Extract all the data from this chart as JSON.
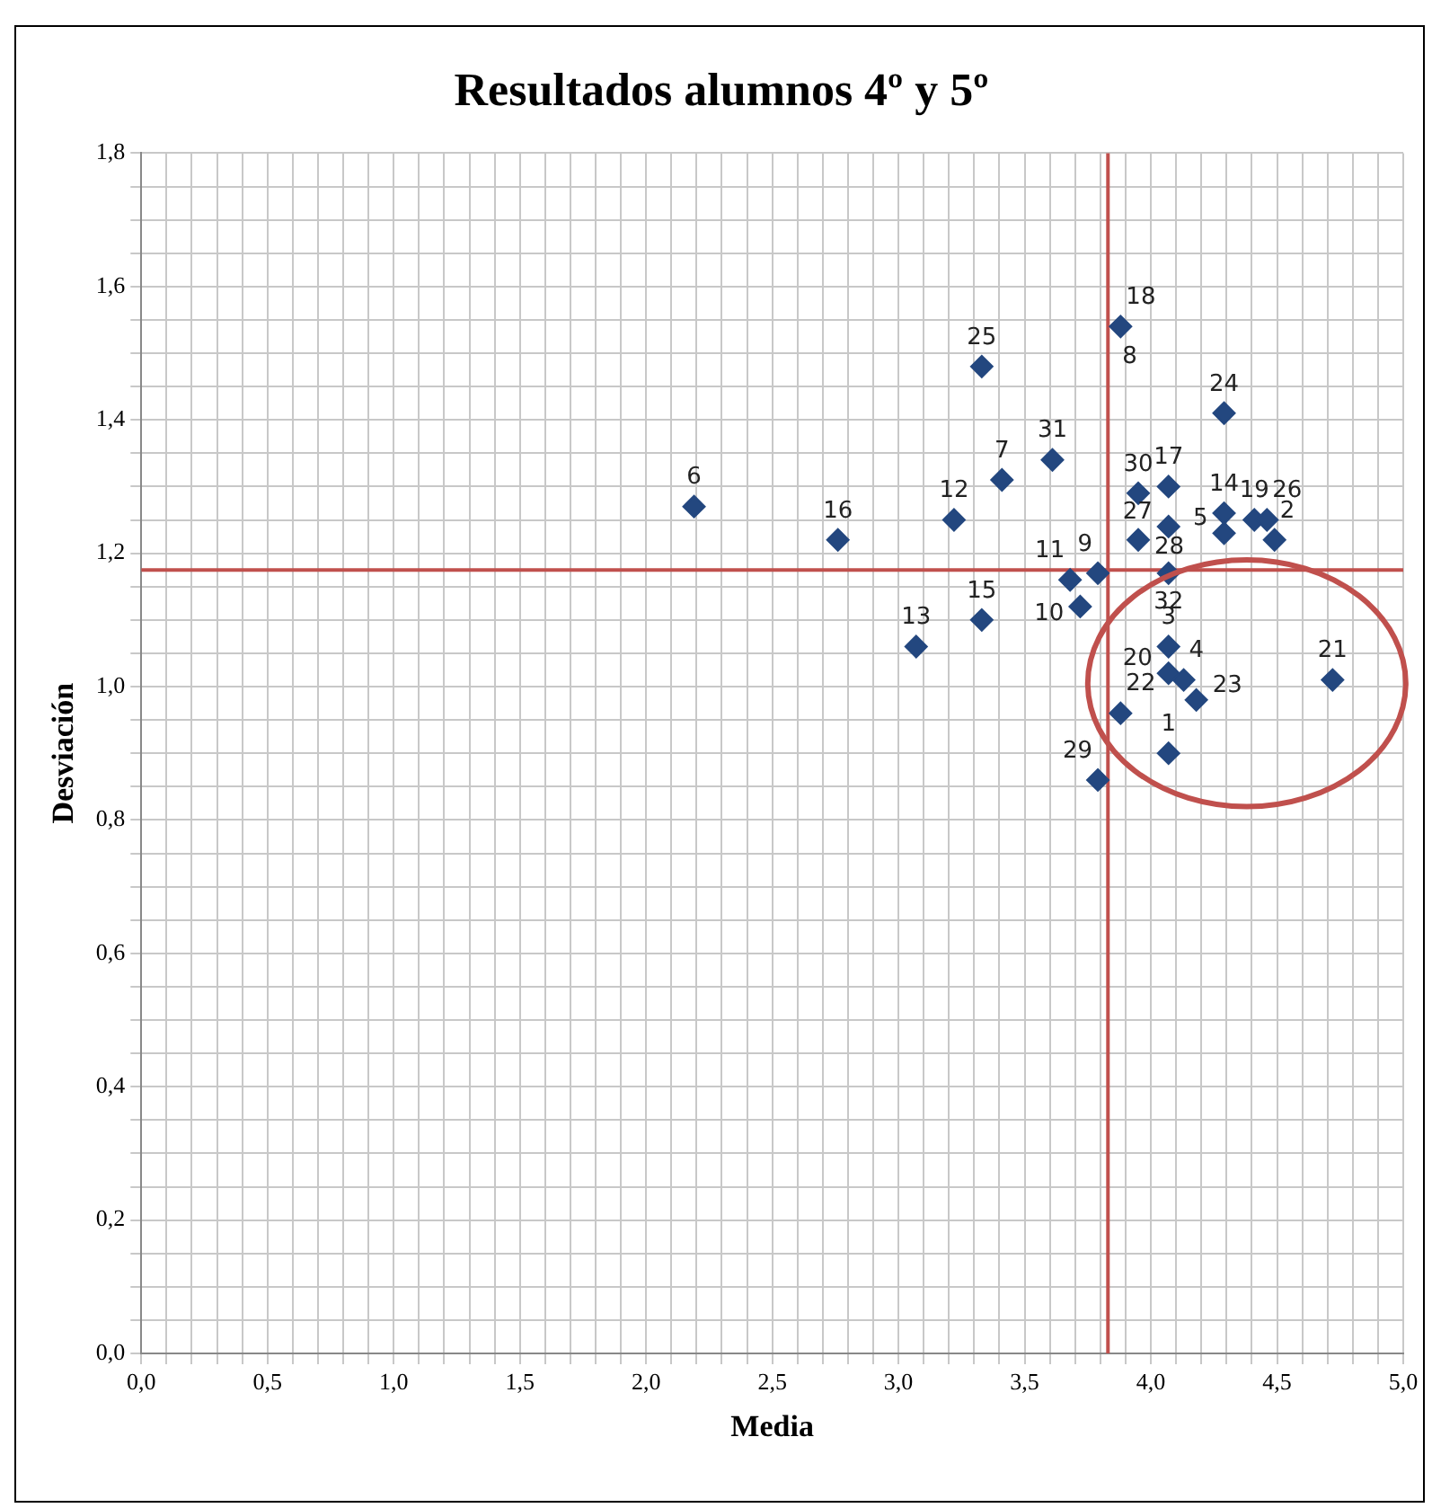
{
  "chart_data": {
    "type": "scatter",
    "title": "Resultados alumnos 4º y 5º",
    "xlabel": "Media",
    "ylabel": "Desviación",
    "x": [
      4.07,
      4.49,
      4.07,
      4.13,
      4.29,
      2.19,
      3.41,
      3.79,
      3.72,
      3.68,
      3.22,
      3.07,
      4.29,
      3.33,
      2.76,
      4.07,
      3.88,
      4.41,
      4.07,
      4.72,
      3.88,
      4.18,
      4.29,
      3.33,
      4.46,
      4.07,
      3.95,
      3.79,
      3.95,
      3.61,
      4.07
    ],
    "values": [
      0.9,
      1.22,
      1.06,
      1.01,
      1.23,
      1.27,
      1.31,
      1.17,
      1.12,
      1.16,
      1.25,
      1.06,
      1.26,
      1.1,
      1.22,
      1.3,
      1.54,
      1.25,
      1.02,
      1.01,
      0.96,
      0.98,
      1.41,
      1.48,
      1.25,
      1.24,
      1.22,
      0.86,
      1.29,
      1.34,
      1.17
    ],
    "color": "#23477f",
    "marker": "diamond",
    "annotations": [
      {
        "text": "1",
        "x": 4.07,
        "y": 0.9
      },
      {
        "text": "2",
        "x": 4.49,
        "y": 1.22
      },
      {
        "text": "3",
        "x": 4.07,
        "y": 1.06
      },
      {
        "text": "4",
        "x": 4.13,
        "y": 1.01
      },
      {
        "text": "5",
        "x": 4.29,
        "y": 1.23
      },
      {
        "text": "6",
        "x": 2.19,
        "y": 1.27
      },
      {
        "text": "7",
        "x": 3.41,
        "y": 1.31
      },
      "8",
      {
        "text": "9",
        "x": 3.79,
        "y": 1.17
      },
      {
        "text": "10",
        "x": 3.72,
        "y": 1.12
      },
      {
        "text": "11",
        "x": 3.68,
        "y": 1.16
      },
      {
        "text": "12",
        "x": 3.22,
        "y": 1.25
      },
      {
        "text": "13",
        "x": 3.07,
        "y": 1.06
      },
      {
        "text": "14",
        "x": 4.29,
        "y": 1.26
      },
      {
        "text": "15",
        "x": 3.33,
        "y": 1.1
      },
      {
        "text": "16",
        "x": 2.76,
        "y": 1.22
      },
      {
        "text": "17",
        "x": 4.07,
        "y": 1.3
      },
      {
        "text": "18",
        "x": 3.88,
        "y": 1.54
      },
      {
        "text": "19",
        "x": 4.41,
        "y": 1.25
      },
      {
        "text": "20",
        "x": 4.07,
        "y": 1.02
      },
      {
        "text": "21",
        "x": 4.72,
        "y": 1.01
      },
      {
        "text": "22",
        "x": 3.88,
        "y": 0.96
      },
      {
        "text": "23",
        "x": 4.18,
        "y": 0.98
      },
      {
        "text": "24",
        "x": 4.29,
        "y": 1.41
      },
      {
        "text": "25",
        "x": 3.33,
        "y": 1.48
      },
      {
        "text": "26",
        "x": 4.46,
        "y": 1.25
      },
      {
        "text": "27",
        "x": 4.07,
        "y": 1.24
      },
      {
        "text": "28",
        "x": 3.95,
        "y": 1.22
      },
      {
        "text": "29",
        "x": 3.79,
        "y": 0.86
      },
      {
        "text": "30",
        "x": 3.95,
        "y": 1.29
      },
      {
        "text": "31",
        "x": 3.61,
        "y": 1.34
      },
      {
        "text": "32",
        "x": 4.07,
        "y": 1.17
      }
    ],
    "ref_lines": [
      {
        "axis": "x",
        "value": 3.83,
        "color": "#c0504d"
      },
      {
        "axis": "y",
        "value": 1.175,
        "color": "#c0504d"
      }
    ],
    "xlim": [
      0,
      5
    ],
    "ylim": [
      0,
      1.8
    ],
    "xticks": [
      {
        "value": 0,
        "label": "0,0"
      },
      {
        "value": 0.1,
        "label": null
      },
      {
        "value": 0.2,
        "label": null
      },
      {
        "value": 0.3,
        "label": null
      },
      {
        "value": 0.4,
        "label": null
      },
      {
        "value": 0.5,
        "label": "0,5"
      },
      {
        "value": 0.6,
        "label": null
      },
      {
        "value": 0.7,
        "label": null
      },
      {
        "value": 0.8,
        "label": null
      },
      {
        "value": 0.9,
        "label": null
      },
      {
        "value": 1,
        "label": "1,0"
      },
      {
        "value": 1.1,
        "label": null
      },
      {
        "value": 1.2,
        "label": null
      },
      {
        "value": 1.3,
        "label": null
      },
      {
        "value": 1.4,
        "label": null
      },
      {
        "value": 1.5,
        "label": "1,5"
      },
      {
        "value": 1.6,
        "label": null
      },
      {
        "value": 1.7,
        "label": null
      },
      {
        "value": 1.8,
        "label": null
      },
      {
        "value": 1.9,
        "label": null
      },
      {
        "value": 2,
        "label": "2,0"
      },
      {
        "value": 2.1,
        "label": null
      },
      {
        "value": 2.2,
        "label": null
      },
      {
        "value": 2.3,
        "label": null
      },
      {
        "value": 2.4,
        "label": null
      },
      {
        "value": 2.5,
        "label": "2,5"
      },
      {
        "value": 2.6,
        "label": null
      },
      {
        "value": 2.7,
        "label": null
      },
      {
        "value": 2.8,
        "label": null
      },
      {
        "value": 2.9,
        "label": null
      },
      {
        "value": 3,
        "label": "3,0"
      },
      {
        "value": 3.1,
        "label": null
      },
      {
        "value": 3.2,
        "label": null
      },
      {
        "value": 3.3,
        "label": null
      },
      {
        "value": 3.4,
        "label": null
      },
      {
        "value": 3.5,
        "label": "3,5"
      },
      {
        "value": 3.6,
        "label": null
      },
      {
        "value": 3.7,
        "label": null
      },
      {
        "value": 3.8,
        "label": null
      },
      {
        "value": 3.9,
        "label": null
      },
      {
        "value": 4,
        "label": "4,0"
      },
      {
        "value": 4.1,
        "label": null
      },
      {
        "value": 4.2,
        "label": null
      },
      {
        "value": 4.3,
        "label": null
      },
      {
        "value": 4.4,
        "label": null
      },
      {
        "value": 4.5,
        "label": "4,5"
      },
      {
        "value": 4.6,
        "label": null
      },
      {
        "value": 4.7,
        "label": null
      },
      {
        "value": 4.8,
        "label": null
      },
      {
        "value": 4.9,
        "label": null
      },
      {
        "value": 5,
        "label": "5,0"
      }
    ],
    "yticks": [
      {
        "value": 0,
        "label": "0,0"
      },
      {
        "value": 0.05,
        "label": null
      },
      {
        "value": 0.1,
        "label": null
      },
      {
        "value": 0.15,
        "label": null
      },
      {
        "value": 0.2,
        "label": "0,2"
      },
      {
        "value": 0.25,
        "label": null
      },
      {
        "value": 0.3,
        "label": null
      },
      {
        "value": 0.35,
        "label": null
      },
      {
        "value": 0.4,
        "label": "0,4"
      },
      {
        "value": 0.45,
        "label": null
      },
      {
        "value": 0.5,
        "label": null
      },
      {
        "value": 0.55,
        "label": null
      },
      {
        "value": 0.6,
        "label": "0,6"
      },
      {
        "value": 0.65,
        "label": null
      },
      {
        "value": 0.7,
        "label": null
      },
      {
        "value": 0.75,
        "label": null
      },
      {
        "value": 0.8,
        "label": "0,8"
      },
      {
        "value": 0.85,
        "label": null
      },
      {
        "value": 0.9,
        "label": null
      },
      {
        "value": 0.95,
        "label": null
      },
      {
        "value": 1,
        "label": "1,0"
      },
      {
        "value": 1.05,
        "label": null
      },
      {
        "value": 1.1,
        "label": null
      },
      {
        "value": 1.15,
        "label": null
      },
      {
        "value": 1.2,
        "label": "1,2"
      },
      {
        "value": 1.25,
        "label": null
      },
      {
        "value": 1.3,
        "label": null
      },
      {
        "value": 1.35,
        "label": null
      },
      {
        "value": 1.4,
        "label": "1,4"
      },
      {
        "value": 1.45,
        "label": null
      },
      {
        "value": 1.5,
        "label": null
      },
      {
        "value": 1.55,
        "label": null
      },
      {
        "value": 1.6,
        "label": "1,6"
      },
      {
        "value": 1.65,
        "label": null
      },
      {
        "value": 1.7,
        "label": null
      },
      {
        "value": 1.75,
        "label": null
      },
      {
        "value": 1.8,
        "label": "1,8"
      }
    ],
    "grid": true,
    "legend": false
  }
}
